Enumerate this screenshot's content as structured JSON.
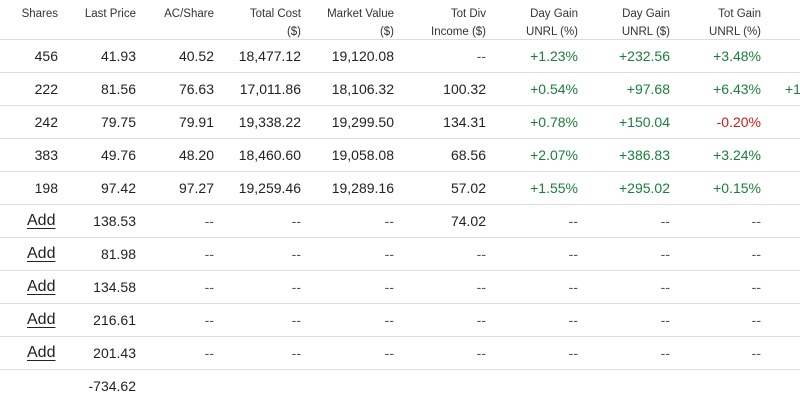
{
  "headers": [
    {
      "line1": "Shares",
      "line2": ""
    },
    {
      "line1": "Last Price",
      "line2": ""
    },
    {
      "line1": "AC/Share",
      "line2": ""
    },
    {
      "line1": "Total Cost",
      "line2": "($)"
    },
    {
      "line1": "Market Value",
      "line2": "($)"
    },
    {
      "line1": "Tot Div",
      "line2": "Income ($)"
    },
    {
      "line1": "Day Gain",
      "line2": "UNRL (%)"
    },
    {
      "line1": "Day Gain",
      "line2": "UNRL ($)"
    },
    {
      "line1": "Tot Gain",
      "line2": "UNRL (%)"
    }
  ],
  "colors": {
    "positive": "#1a7f3c",
    "negative": "#d11a1a",
    "border": "#dddddd"
  },
  "rows": [
    {
      "shares": "456",
      "last_price": "41.93",
      "ac_share": "40.52",
      "total_cost": "18,477.12",
      "market_value": "19,120.08",
      "tot_div": "--",
      "day_gain_pct": "+1.23%",
      "day_gain_usd": "+232.56",
      "tot_gain_pct": "+3.48%",
      "cutoff": ""
    },
    {
      "shares": "222",
      "last_price": "81.56",
      "ac_share": "76.63",
      "total_cost": "17,011.86",
      "market_value": "18,106.32",
      "tot_div": "100.32",
      "day_gain_pct": "+0.54%",
      "day_gain_usd": "+97.68",
      "tot_gain_pct": "+6.43%",
      "cutoff": "+1"
    },
    {
      "shares": "242",
      "last_price": "79.75",
      "ac_share": "79.91",
      "total_cost": "19,338.22",
      "market_value": "19,299.50",
      "tot_div": "134.31",
      "day_gain_pct": "+0.78%",
      "day_gain_usd": "+150.04",
      "tot_gain_pct": "-0.20%",
      "cutoff": ""
    },
    {
      "shares": "383",
      "last_price": "49.76",
      "ac_share": "48.20",
      "total_cost": "18,460.60",
      "market_value": "19,058.08",
      "tot_div": "68.56",
      "day_gain_pct": "+2.07%",
      "day_gain_usd": "+386.83",
      "tot_gain_pct": "+3.24%",
      "cutoff": ""
    },
    {
      "shares": "198",
      "last_price": "97.42",
      "ac_share": "97.27",
      "total_cost": "19,259.46",
      "market_value": "19,289.16",
      "tot_div": "57.02",
      "day_gain_pct": "+1.55%",
      "day_gain_usd": "+295.02",
      "tot_gain_pct": "+0.15%",
      "cutoff": ""
    }
  ],
  "add_rows": [
    {
      "label": "Add",
      "last_price": "138.53",
      "ac_share": "--",
      "total_cost": "--",
      "market_value": "--",
      "tot_div": "74.02",
      "day_gain_pct": "--",
      "day_gain_usd": "--",
      "tot_gain_pct": "--"
    },
    {
      "label": "Add",
      "last_price": "81.98",
      "ac_share": "--",
      "total_cost": "--",
      "market_value": "--",
      "tot_div": "--",
      "day_gain_pct": "--",
      "day_gain_usd": "--",
      "tot_gain_pct": "--"
    },
    {
      "label": "Add",
      "last_price": "134.58",
      "ac_share": "--",
      "total_cost": "--",
      "market_value": "--",
      "tot_div": "--",
      "day_gain_pct": "--",
      "day_gain_usd": "--",
      "tot_gain_pct": "--"
    },
    {
      "label": "Add",
      "last_price": "216.61",
      "ac_share": "--",
      "total_cost": "--",
      "market_value": "--",
      "tot_div": "--",
      "day_gain_pct": "--",
      "day_gain_usd": "--",
      "tot_gain_pct": "--"
    },
    {
      "label": "Add",
      "last_price": "201.43",
      "ac_share": "--",
      "total_cost": "--",
      "market_value": "--",
      "tot_div": "--",
      "day_gain_pct": "--",
      "day_gain_usd": "--",
      "tot_gain_pct": "--"
    }
  ],
  "total_row": {
    "last_price": "-734.62"
  }
}
